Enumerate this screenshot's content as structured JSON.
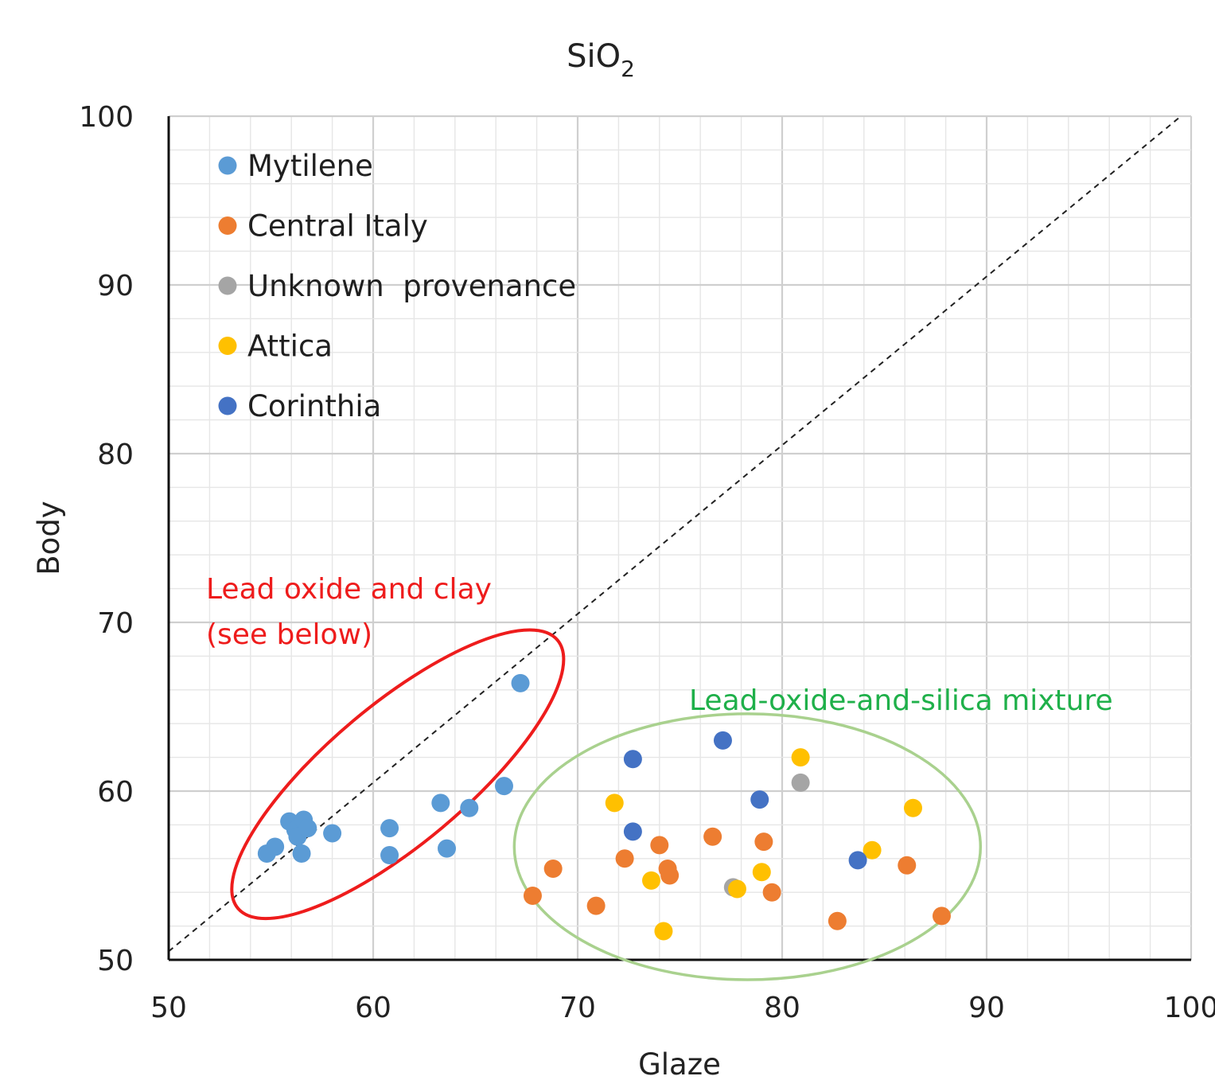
{
  "chart_data": {
    "type": "scatter",
    "title": "SiO",
    "title_subscript": "2",
    "xlabel": "Glaze",
    "ylabel": "Body",
    "xlim": [
      50,
      100
    ],
    "ylim": [
      50,
      100
    ],
    "xticks": [
      "50",
      "60",
      "70",
      "80",
      "90",
      "100"
    ],
    "yticks": [
      "50",
      "60",
      "70",
      "80",
      "90",
      "100"
    ],
    "grid": true,
    "legend_position": "top-left",
    "reference_line": {
      "style": "dashed",
      "from": [
        50,
        50.5
      ],
      "to": [
        99.5,
        100
      ]
    },
    "series": [
      {
        "name": "Mytilene",
        "color": "#5b9bd5",
        "points": [
          [
            54.8,
            56.3
          ],
          [
            55.2,
            56.7
          ],
          [
            55.9,
            58.2
          ],
          [
            56.2,
            57.7
          ],
          [
            56.3,
            57.3
          ],
          [
            56.5,
            56.3
          ],
          [
            56.6,
            58.3
          ],
          [
            56.8,
            57.8
          ],
          [
            58.0,
            57.5
          ],
          [
            60.8,
            56.2
          ],
          [
            60.8,
            57.8
          ],
          [
            63.3,
            59.3
          ],
          [
            63.6,
            56.6
          ],
          [
            64.7,
            59.0
          ],
          [
            66.4,
            60.3
          ],
          [
            67.2,
            66.4
          ]
        ]
      },
      {
        "name": "Central Italy",
        "color": "#ed7d31",
        "points": [
          [
            67.8,
            53.8
          ],
          [
            68.8,
            55.4
          ],
          [
            70.9,
            53.2
          ],
          [
            72.3,
            56.0
          ],
          [
            74.0,
            56.8
          ],
          [
            74.4,
            55.4
          ],
          [
            74.5,
            55.0
          ],
          [
            76.6,
            57.3
          ],
          [
            79.1,
            57.0
          ],
          [
            79.5,
            54.0
          ],
          [
            82.7,
            52.3
          ],
          [
            86.1,
            55.6
          ],
          [
            87.8,
            52.6
          ]
        ]
      },
      {
        "name": "Unknown  provenance",
        "color": "#a5a5a5",
        "points": [
          [
            80.9,
            60.5
          ],
          [
            77.6,
            54.3
          ]
        ]
      },
      {
        "name": "Attica",
        "color": "#ffc000",
        "points": [
          [
            71.8,
            59.3
          ],
          [
            73.6,
            54.7
          ],
          [
            74.2,
            51.7
          ],
          [
            77.8,
            54.2
          ],
          [
            79.0,
            55.2
          ],
          [
            80.9,
            62.0
          ],
          [
            84.4,
            56.5
          ],
          [
            86.4,
            59.0
          ]
        ]
      },
      {
        "name": "Corinthia",
        "color": "#4472c4",
        "points": [
          [
            72.7,
            61.9
          ],
          [
            72.7,
            57.6
          ],
          [
            77.1,
            63.0
          ],
          [
            78.9,
            59.5
          ],
          [
            83.7,
            55.9
          ]
        ]
      }
    ],
    "annotations": [
      {
        "lines": [
          "Lead oxide and clay",
          "(see below)"
        ],
        "color": "#ee1c1c"
      },
      {
        "lines": [
          "Lead-oxide-and-silica mixture"
        ],
        "color": "#1fb04a"
      }
    ],
    "ellipses": [
      {
        "color": "#ee1c1c",
        "center": [
          61.2,
          61.0
        ],
        "semi_axes": [
          10.2,
          3.4
        ],
        "rotation_deg": 40
      },
      {
        "color": "#a9d18e",
        "center": [
          78.3,
          56.7
        ],
        "semi_axes": [
          11.4,
          6.5
        ],
        "rotation_deg": 0
      }
    ]
  }
}
